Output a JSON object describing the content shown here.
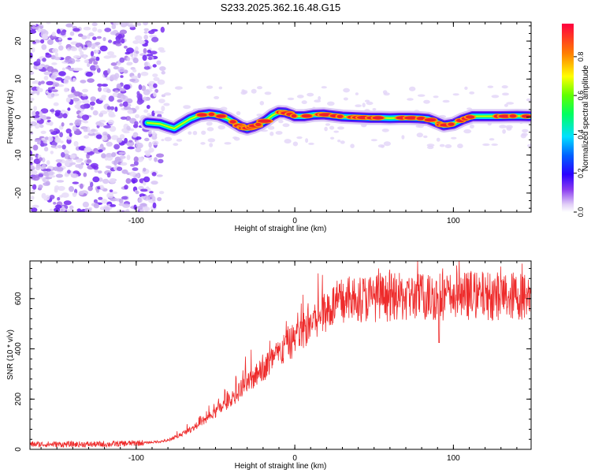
{
  "figure": {
    "title": "S233.2025.362.16.48.G15"
  },
  "colors": {
    "snr_line": "#ee2b2b",
    "axis": "#000000",
    "background": "#ffffff"
  },
  "chart_data": [
    {
      "type": "heatmap",
      "title": "S233.2025.362.16.48.G15",
      "xlabel": "Height of straight line (km)",
      "ylabel": "Frequency (Hz)",
      "xlim": [
        -167,
        149
      ],
      "ylim": [
        -25,
        25
      ],
      "xticks": [
        -100,
        0,
        100
      ],
      "xtick_labels": [
        "-100",
        "0",
        "100"
      ],
      "yticks": [
        -20,
        -10,
        0,
        10,
        20
      ],
      "ytick_labels": [
        "-20",
        "-10",
        "0",
        "10",
        "20"
      ],
      "noise_region_x": [
        -167,
        -88
      ],
      "ridge": {
        "x": [
          -93,
          -85,
          -80,
          -76,
          -72,
          -66,
          -60,
          -54,
          -48,
          -42,
          -38,
          -34,
          -30,
          -26,
          -22,
          -18,
          -14,
          -10,
          -6,
          -2,
          0,
          6,
          12,
          18,
          24,
          30,
          36,
          42,
          48,
          54,
          60,
          66,
          72,
          78,
          84,
          90,
          94,
          100,
          106,
          112,
          120,
          130,
          140,
          148
        ],
        "y": [
          -1.5,
          -1.8,
          -2.5,
          -3.0,
          -2.0,
          -0.5,
          0.5,
          0.8,
          0.5,
          -0.5,
          -1.5,
          -2.5,
          -3.0,
          -2.5,
          -1.8,
          -0.8,
          0.5,
          1.3,
          1.2,
          0.6,
          0.2,
          0.2,
          0.6,
          0.7,
          0.4,
          0.1,
          0.0,
          -0.1,
          -0.2,
          -0.2,
          -0.3,
          -0.2,
          -0.2,
          -0.3,
          -0.5,
          -1.5,
          -2.2,
          -1.8,
          -0.6,
          0.2,
          0.2,
          0.2,
          0.3,
          0.2
        ]
      },
      "colorbar": {
        "label": "Normalized spectral amplitude",
        "range": [
          0.0,
          0.97
        ],
        "ticks": [
          0.0,
          0.2,
          0.4,
          0.6,
          0.8
        ],
        "tick_labels": [
          "0.0",
          "0.2",
          "0.4",
          "0.6",
          "0.8"
        ]
      }
    },
    {
      "type": "line",
      "xlabel": "Height of straight line (km)",
      "ylabel": "SNR (10 * v/v)",
      "xlim": [
        -167,
        149
      ],
      "ylim": [
        0,
        750
      ],
      "xticks": [
        -100,
        0,
        100
      ],
      "xtick_labels": [
        "-100",
        "0",
        "100"
      ],
      "yticks": [
        0,
        200,
        400,
        600
      ],
      "ytick_labels": [
        "0",
        "200",
        "400",
        "600"
      ],
      "series": [
        {
          "name": "SNR",
          "x_trend": [
            -167,
            -120,
            -100,
            -90,
            -80,
            -70,
            -60,
            -50,
            -40,
            -30,
            -20,
            -10,
            0,
            10,
            20,
            30,
            40,
            60,
            80,
            100,
            120,
            149
          ],
          "y_trend": [
            20,
            20,
            25,
            28,
            35,
            65,
            100,
            145,
            200,
            260,
            320,
            380,
            440,
            500,
            560,
            590,
            600,
            605,
            608,
            610,
            612,
            610
          ],
          "noise_amplitude_fraction": 0.16,
          "notable_dip": {
            "x": 91,
            "y": 425
          }
        }
      ]
    }
  ]
}
